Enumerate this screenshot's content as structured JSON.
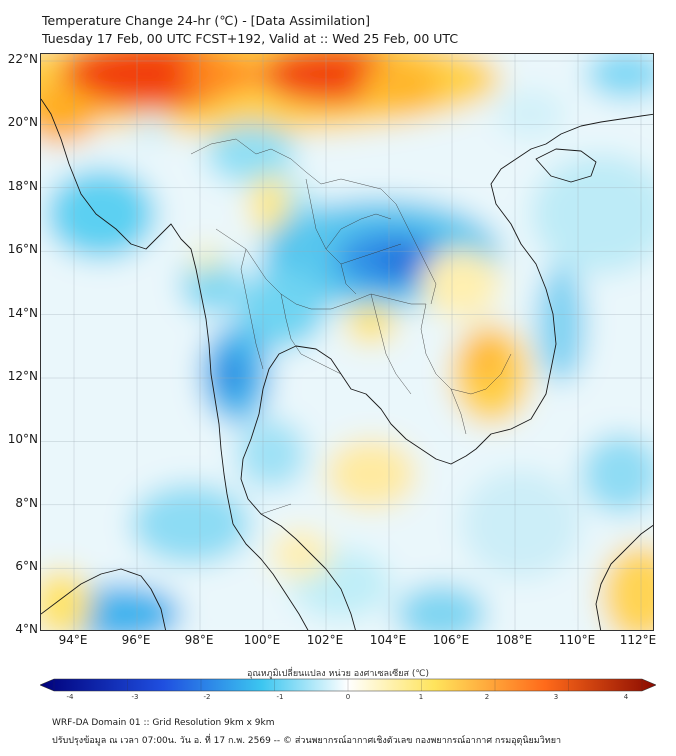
{
  "header": {
    "title": "Temperature Change 24-hr (℃) - [Data Assimilation]",
    "subtitle": "Tuesday 17 Feb, 00 UTC FCST+192, Valid at :: Wed 25 Feb, 00 UTC"
  },
  "map": {
    "lat_labels": [
      "22°N",
      "20°N",
      "18°N",
      "16°N",
      "14°N",
      "12°N",
      "10°N",
      "8°N",
      "6°N",
      "4°N"
    ],
    "lon_labels": [
      "94°E",
      "96°E",
      "98°E",
      "100°E",
      "102°E",
      "104°E",
      "106°E",
      "108°E",
      "110°E",
      "112°E"
    ]
  },
  "colorbar": {
    "title": "อุณหภูมิเปลี่ยนแปลง หน่วย องศาเซลเซียส (℃)",
    "tick_labels": [
      "-4",
      "-3",
      "-2",
      "-1",
      "0",
      "1",
      "2",
      "3",
      "4"
    ],
    "colors": {
      "cold_extreme": "#00007a",
      "cold": "#1f4fe0",
      "cool": "#3cc6f0",
      "neutral": "#ffffff",
      "warm": "#ffe45c",
      "hot": "#ff6a1a",
      "hot_extreme": "#8a0a00"
    }
  },
  "footer": {
    "line1": "WRF-DA Domain 01 :: Grid Resolution 9km x 9km",
    "line2": "ปรับปรุงข้อมูล ณ เวลา 07:00น. วัน อ. ที่ 17 ก.พ. 2569 -- © ส่วนพยากรณ์อากาศเชิงตัวเลข กองพยากรณ์อากาศ กรมอุตุนิยมวิทยา"
  }
}
